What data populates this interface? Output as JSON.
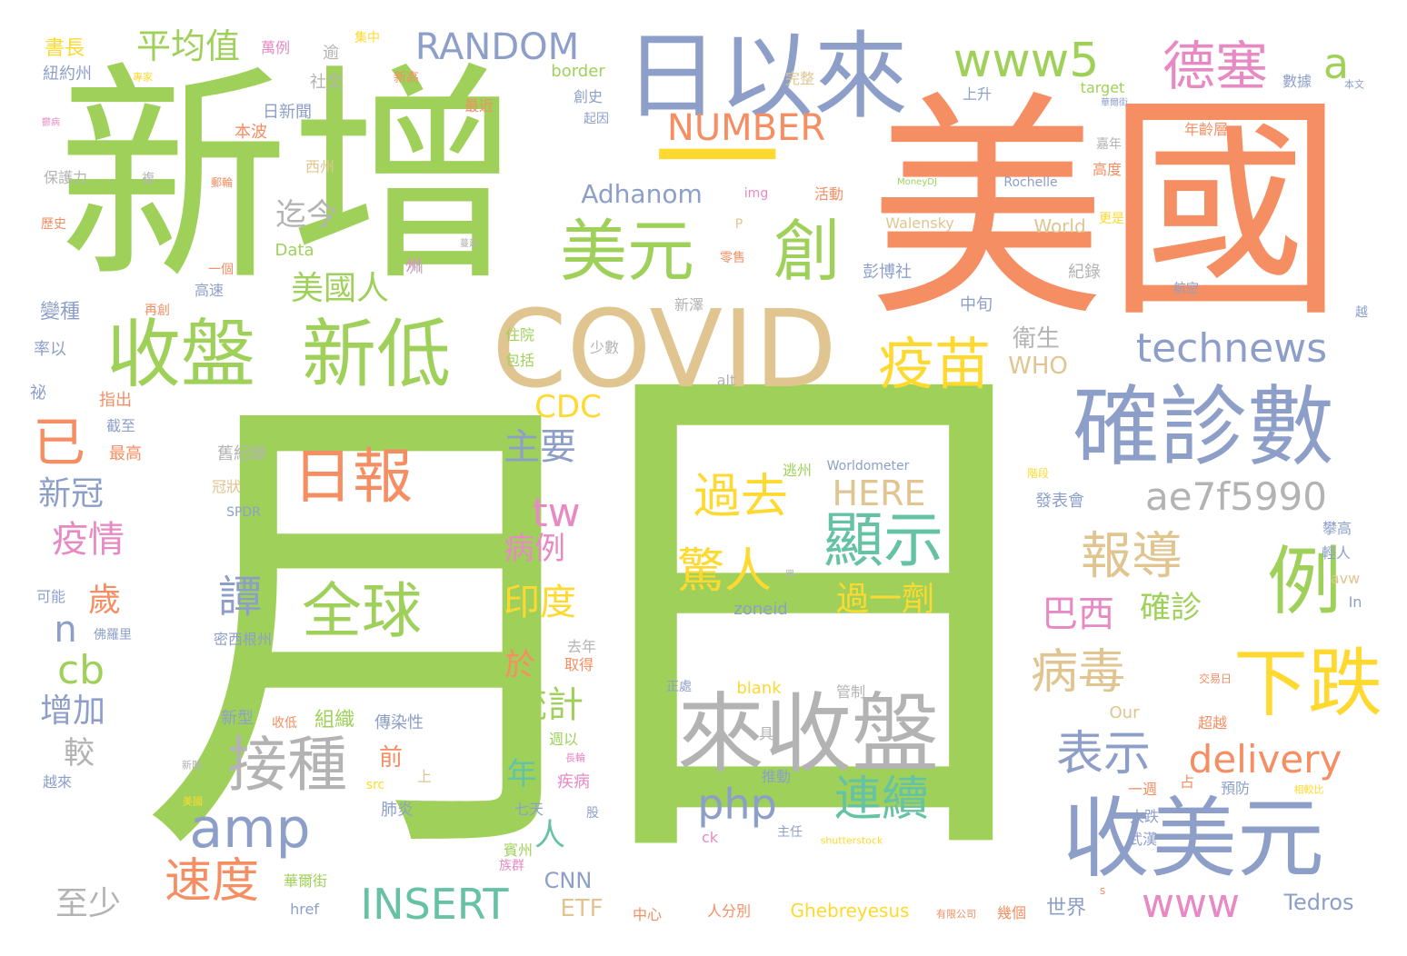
{
  "cloud": {
    "words": [
      {
        "text": "月",
        "color": "#9fd15a"
      },
      {
        "text": "日",
        "color": "#9fd15a"
      },
      {
        "text": "新增",
        "color": "#9fd15a"
      },
      {
        "text": "美國",
        "color": "#f58e63"
      },
      {
        "text": "COVID",
        "color": "#e0c590"
      },
      {
        "text": "日以來",
        "color": "#8d9fc9"
      },
      {
        "text": "一",
        "color": "#ffd92f"
      },
      {
        "text": "美元",
        "color": "#9fd15a"
      },
      {
        "text": "創",
        "color": "#9fd15a"
      },
      {
        "text": "收盤",
        "color": "#9fd15a"
      },
      {
        "text": "新低",
        "color": "#9fd15a"
      },
      {
        "text": "確診數",
        "color": "#8d9fc9"
      },
      {
        "text": "來收盤",
        "color": "#b3b3b3"
      },
      {
        "text": "下跌",
        "color": "#ffd92f"
      },
      {
        "text": "收美元",
        "color": "#8d9fc9"
      },
      {
        "text": "例",
        "color": "#9fd15a"
      },
      {
        "text": "接種",
        "color": "#b3b3b3"
      },
      {
        "text": "amp",
        "color": "#8d9fc9"
      },
      {
        "text": "日報",
        "color": "#f58e63"
      },
      {
        "text": "全球",
        "color": "#9fd15a"
      },
      {
        "text": "顯示",
        "color": "#66c2a5"
      },
      {
        "text": "疫苗",
        "color": "#ffd92f"
      },
      {
        "text": "technews",
        "color": "#8d9fc9"
      },
      {
        "text": "www5",
        "color": "#9fd15a"
      },
      {
        "text": "德塞",
        "color": "#e78ac3"
      },
      {
        "text": "a",
        "color": "#9fd15a"
      },
      {
        "text": "RANDOM",
        "color": "#8d9fc9"
      },
      {
        "text": "平均值",
        "color": "#9fd15a"
      },
      {
        "text": "NUMBER",
        "color": "#f58e63"
      },
      {
        "text": "報導",
        "color": "#e0c590"
      },
      {
        "text": "ae7f5990",
        "color": "#b3b3b3"
      },
      {
        "text": "過去",
        "color": "#ffd92f"
      },
      {
        "text": "驚人",
        "color": "#ffd92f"
      },
      {
        "text": "病毒",
        "color": "#e0c590"
      },
      {
        "text": "表示",
        "color": "#8d9fc9"
      },
      {
        "text": "delivery",
        "color": "#f58e63"
      },
      {
        "text": "速度",
        "color": "#f58e63"
      },
      {
        "text": "INSERT",
        "color": "#66c2a5"
      },
      {
        "text": "www",
        "color": "#e78ac3"
      },
      {
        "text": "php",
        "color": "#8d9fc9"
      },
      {
        "text": "連續",
        "color": "#66c2a5"
      },
      {
        "text": "譚",
        "color": "#8d9fc9"
      },
      {
        "text": "已",
        "color": "#f58e63"
      },
      {
        "text": "美國人",
        "color": "#9fd15a"
      },
      {
        "text": "迄今",
        "color": "#b3b3b3"
      },
      {
        "text": "tw",
        "color": "#e78ac3"
      },
      {
        "text": "HERE",
        "color": "#e0c590"
      },
      {
        "text": "CDC",
        "color": "#ffd92f"
      },
      {
        "text": "主要",
        "color": "#8d9fc9"
      },
      {
        "text": "病例",
        "color": "#e78ac3"
      },
      {
        "text": "印度",
        "color": "#ffd92f"
      },
      {
        "text": "統計",
        "color": "#9fd15a"
      },
      {
        "text": "巴西",
        "color": "#e78ac3"
      },
      {
        "text": "確診",
        "color": "#9fd15a"
      },
      {
        "text": "過一劑",
        "color": "#ffd92f"
      },
      {
        "text": "Adhanom",
        "color": "#8d9fc9"
      },
      {
        "text": "衛生",
        "color": "#b3b3b3"
      },
      {
        "text": "WHO",
        "color": "#e0c590"
      },
      {
        "text": "新冠",
        "color": "#8d9fc9"
      },
      {
        "text": "疫情",
        "color": "#e78ac3"
      },
      {
        "text": "歲",
        "color": "#f58e63"
      },
      {
        "text": "n",
        "color": "#8d9fc9"
      },
      {
        "text": "cb",
        "color": "#9fd15a"
      },
      {
        "text": "增加",
        "color": "#8d9fc9"
      },
      {
        "text": "較",
        "color": "#b3b3b3"
      },
      {
        "text": "至少",
        "color": "#b3b3b3"
      },
      {
        "text": "書長",
        "color": "#ffd92f"
      },
      {
        "text": "萬例",
        "color": "#e78ac3"
      },
      {
        "text": "逾",
        "color": "#b3b3b3"
      },
      {
        "text": "集中",
        "color": "#ffd92f"
      },
      {
        "text": "紐約州",
        "color": "#8d9fc9"
      },
      {
        "text": "專家",
        "color": "#ffd92f"
      },
      {
        "text": "社交",
        "color": "#b3b3b3"
      },
      {
        "text": "新高",
        "color": "#f58e63"
      },
      {
        "text": "最近",
        "color": "#f58e63"
      },
      {
        "text": "本波",
        "color": "#f58e63"
      },
      {
        "text": "日新聞",
        "color": "#8d9fc9"
      },
      {
        "text": "西州",
        "color": "#e0c590"
      },
      {
        "text": "保護力",
        "color": "#b3b3b3"
      },
      {
        "text": "複",
        "color": "#b3b3b3"
      },
      {
        "text": "歷史",
        "color": "#f58e63"
      },
      {
        "text": "Data",
        "color": "#9fd15a"
      },
      {
        "text": "州",
        "color": "#e78ac3"
      },
      {
        "text": "一個",
        "color": "#f58e63"
      },
      {
        "text": "高速",
        "color": "#8d9fc9"
      },
      {
        "text": "變種",
        "color": "#8d9fc9"
      },
      {
        "text": "再創",
        "color": "#f58e63"
      },
      {
        "text": "率以",
        "color": "#8d9fc9"
      },
      {
        "text": "祕",
        "color": "#8d9fc9"
      },
      {
        "text": "指出",
        "color": "#f58e63"
      },
      {
        "text": "截至",
        "color": "#8d9fc9"
      },
      {
        "text": "最高",
        "color": "#f58e63"
      },
      {
        "text": "可能",
        "color": "#8d9fc9"
      },
      {
        "text": "舊紀錄",
        "color": "#b3b3b3"
      },
      {
        "text": "冠狀",
        "color": "#e0c590"
      },
      {
        "text": "SPDR",
        "color": "#8d9fc9"
      },
      {
        "text": "佛羅里",
        "color": "#8d9fc9"
      },
      {
        "text": "密西根州",
        "color": "#8d9fc9"
      },
      {
        "text": "新型",
        "color": "#8d9fc9"
      },
      {
        "text": "收低",
        "color": "#f58e63"
      },
      {
        "text": "組織",
        "color": "#9fd15a"
      },
      {
        "text": "傳染性",
        "color": "#8d9fc9"
      },
      {
        "text": "前",
        "color": "#f58e63"
      },
      {
        "text": "上",
        "color": "#e0c590"
      },
      {
        "text": "新聞",
        "color": "#b3b3b3"
      },
      {
        "text": "越來",
        "color": "#8d9fc9"
      },
      {
        "text": "美國",
        "color": "#ffd92f"
      },
      {
        "text": "華爾街",
        "color": "#9fd15a"
      },
      {
        "text": "href",
        "color": "#8d9fc9"
      },
      {
        "text": "於",
        "color": "#f58e63"
      },
      {
        "text": "年",
        "color": "#66c2a5"
      },
      {
        "text": "疾病",
        "color": "#e78ac3"
      },
      {
        "text": "人",
        "color": "#66c2a5"
      },
      {
        "text": "去年",
        "color": "#b3b3b3"
      },
      {
        "text": "取得",
        "color": "#f58e63"
      },
      {
        "text": "週以",
        "color": "#9fd15a"
      },
      {
        "text": "長輪",
        "color": "#e78ac3"
      },
      {
        "text": "src",
        "color": "#ffd92f"
      },
      {
        "text": "肺炎",
        "color": "#8d9fc9"
      },
      {
        "text": "七天",
        "color": "#8d9fc9"
      },
      {
        "text": "股",
        "color": "#8d9fc9"
      },
      {
        "text": "賓州",
        "color": "#9fd15a"
      },
      {
        "text": "族群",
        "color": "#e78ac3"
      },
      {
        "text": "CNN",
        "color": "#8d9fc9"
      },
      {
        "text": "ETF",
        "color": "#e0c590"
      },
      {
        "text": "中心",
        "color": "#f58e63"
      },
      {
        "text": "人分別",
        "color": "#f58e63"
      },
      {
        "text": "ck",
        "color": "#e78ac3"
      },
      {
        "text": "主任",
        "color": "#8d9fc9"
      },
      {
        "text": "shutterstock",
        "color": "#ffd92f"
      },
      {
        "text": "Ghebreyesus",
        "color": "#ffd92f"
      },
      {
        "text": "有限公司",
        "color": "#f58e63"
      },
      {
        "text": "幾個",
        "color": "#f58e63"
      },
      {
        "text": "世界",
        "color": "#8d9fc9"
      },
      {
        "text": "Tedros",
        "color": "#8d9fc9"
      },
      {
        "text": "alt",
        "color": "#b3b3b3"
      },
      {
        "text": "少數",
        "color": "#b3b3b3"
      },
      {
        "text": "住院",
        "color": "#9fd15a"
      },
      {
        "text": "包括",
        "color": "#9fd15a"
      },
      {
        "text": "新澤",
        "color": "#b3b3b3"
      },
      {
        "text": "州",
        "color": "#b3b3b3"
      },
      {
        "text": "零售",
        "color": "#f58e63"
      },
      {
        "text": "彭博社",
        "color": "#8d9fc9"
      },
      {
        "text": "中旬",
        "color": "#8d9fc9"
      },
      {
        "text": "紀錄",
        "color": "#b3b3b3"
      },
      {
        "text": "航空",
        "color": "#8d9fc9"
      },
      {
        "text": "越",
        "color": "#8d9fc9"
      },
      {
        "text": "活動",
        "color": "#f58e63"
      },
      {
        "text": "img",
        "color": "#e78ac3"
      },
      {
        "text": "P",
        "color": "#e0c590"
      },
      {
        "text": "border",
        "color": "#9fd15a"
      },
      {
        "text": "創史",
        "color": "#8d9fc9"
      },
      {
        "text": "起因",
        "color": "#8d9fc9"
      },
      {
        "text": "完整",
        "color": "#e0c590"
      },
      {
        "text": "上升",
        "color": "#8d9fc9"
      },
      {
        "text": "target",
        "color": "#9fd15a"
      },
      {
        "text": "華爾街",
        "color": "#8d9fc9"
      },
      {
        "text": "數據",
        "color": "#8d9fc9"
      },
      {
        "text": "本文",
        "color": "#8d9fc9"
      },
      {
        "text": "年齡層",
        "color": "#f58e63"
      },
      {
        "text": "嘉年",
        "color": "#b3b3b3"
      },
      {
        "text": "高度",
        "color": "#f58e63"
      },
      {
        "text": "MoneyDJ",
        "color": "#9fd15a"
      },
      {
        "text": "Rochelle",
        "color": "#8d9fc9"
      },
      {
        "text": "Walensky",
        "color": "#e0c590"
      },
      {
        "text": "World",
        "color": "#e0c590"
      },
      {
        "text": "更是",
        "color": "#ffd92f"
      },
      {
        "text": "蔓延",
        "color": "#b3b3b3"
      },
      {
        "text": "郵輪",
        "color": "#f58e63"
      },
      {
        "text": "鬱病",
        "color": "#e78ac3"
      },
      {
        "text": "逃州",
        "color": "#9fd15a"
      },
      {
        "text": "Worldometer",
        "color": "#8d9fc9"
      },
      {
        "text": "zoneid",
        "color": "#8d9fc9"
      },
      {
        "text": "黑",
        "color": "#b3b3b3"
      },
      {
        "text": "blank",
        "color": "#ffd92f"
      },
      {
        "text": "管制",
        "color": "#b3b3b3"
      },
      {
        "text": "正處",
        "color": "#8d9fc9"
      },
      {
        "text": "具",
        "color": "#b3b3b3"
      },
      {
        "text": "推動",
        "color": "#8d9fc9"
      },
      {
        "text": "發表會",
        "color": "#8d9fc9"
      },
      {
        "text": "階段",
        "color": "#ffd92f"
      },
      {
        "text": "攀高",
        "color": "#8d9fc9"
      },
      {
        "text": "輕人",
        "color": "#8d9fc9"
      },
      {
        "text": "avw",
        "color": "#e0c590"
      },
      {
        "text": "In",
        "color": "#8d9fc9"
      },
      {
        "text": "交易日",
        "color": "#f58e63"
      },
      {
        "text": "Our",
        "color": "#e0c590"
      },
      {
        "text": "超越",
        "color": "#f58e63"
      },
      {
        "text": "一週",
        "color": "#f58e63"
      },
      {
        "text": "占",
        "color": "#f58e63"
      },
      {
        "text": "預防",
        "color": "#8d9fc9"
      },
      {
        "text": "相較比",
        "color": "#ffd92f"
      },
      {
        "text": "大跌",
        "color": "#8d9fc9"
      },
      {
        "text": "武漢",
        "color": "#8d9fc9"
      },
      {
        "text": "s",
        "color": "#f58e63"
      }
    ]
  }
}
